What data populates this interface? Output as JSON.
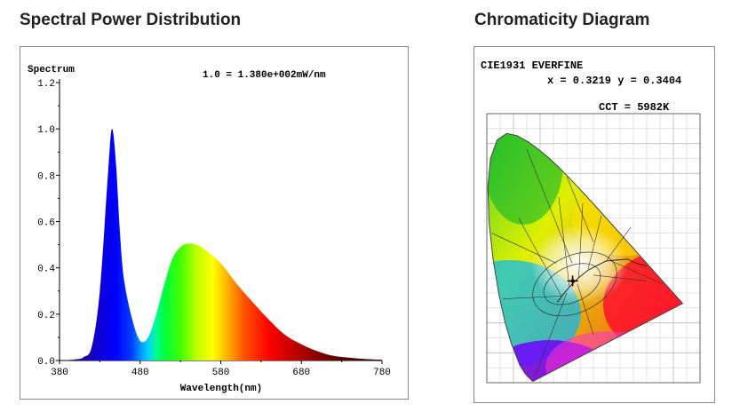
{
  "headings": {
    "spd": "Spectral Power Distribution",
    "cie": "Chromaticity Diagram"
  },
  "chart_data": [
    {
      "type": "area",
      "title": "Spectrum",
      "annotation": "1.0 = 1.380e+002mW/nm",
      "xlabel": "Wavelength(nm)",
      "ylabel": "",
      "xlim": [
        380,
        780
      ],
      "ylim": [
        0,
        1.2
      ],
      "xticks": [
        "380",
        "480",
        "580",
        "680",
        "780"
      ],
      "yticks": [
        "0.0",
        "0.2",
        "0.4",
        "0.6",
        "0.8",
        "1.0",
        "1.2"
      ],
      "grid": false,
      "x": [
        380,
        400,
        410,
        420,
        430,
        440,
        445,
        450,
        455,
        460,
        470,
        480,
        490,
        500,
        510,
        520,
        530,
        540,
        550,
        560,
        580,
        600,
        620,
        640,
        660,
        680,
        700,
        720,
        740,
        760,
        780
      ],
      "y": [
        0.0,
        0.005,
        0.015,
        0.06,
        0.3,
        0.8,
        1.0,
        0.85,
        0.55,
        0.35,
        0.18,
        0.085,
        0.1,
        0.2,
        0.33,
        0.44,
        0.49,
        0.505,
        0.5,
        0.48,
        0.42,
        0.33,
        0.25,
        0.175,
        0.11,
        0.07,
        0.04,
        0.02,
        0.012,
        0.006,
        0.003
      ]
    },
    {
      "type": "scatter",
      "title": "CIE1931 EVERFINE",
      "coords_text": "x = 0.3219 y = 0.3404",
      "cct_text": "CCT = 5982K",
      "x": [
        0.3219
      ],
      "y": [
        0.3404
      ],
      "cct": 5982
    }
  ]
}
